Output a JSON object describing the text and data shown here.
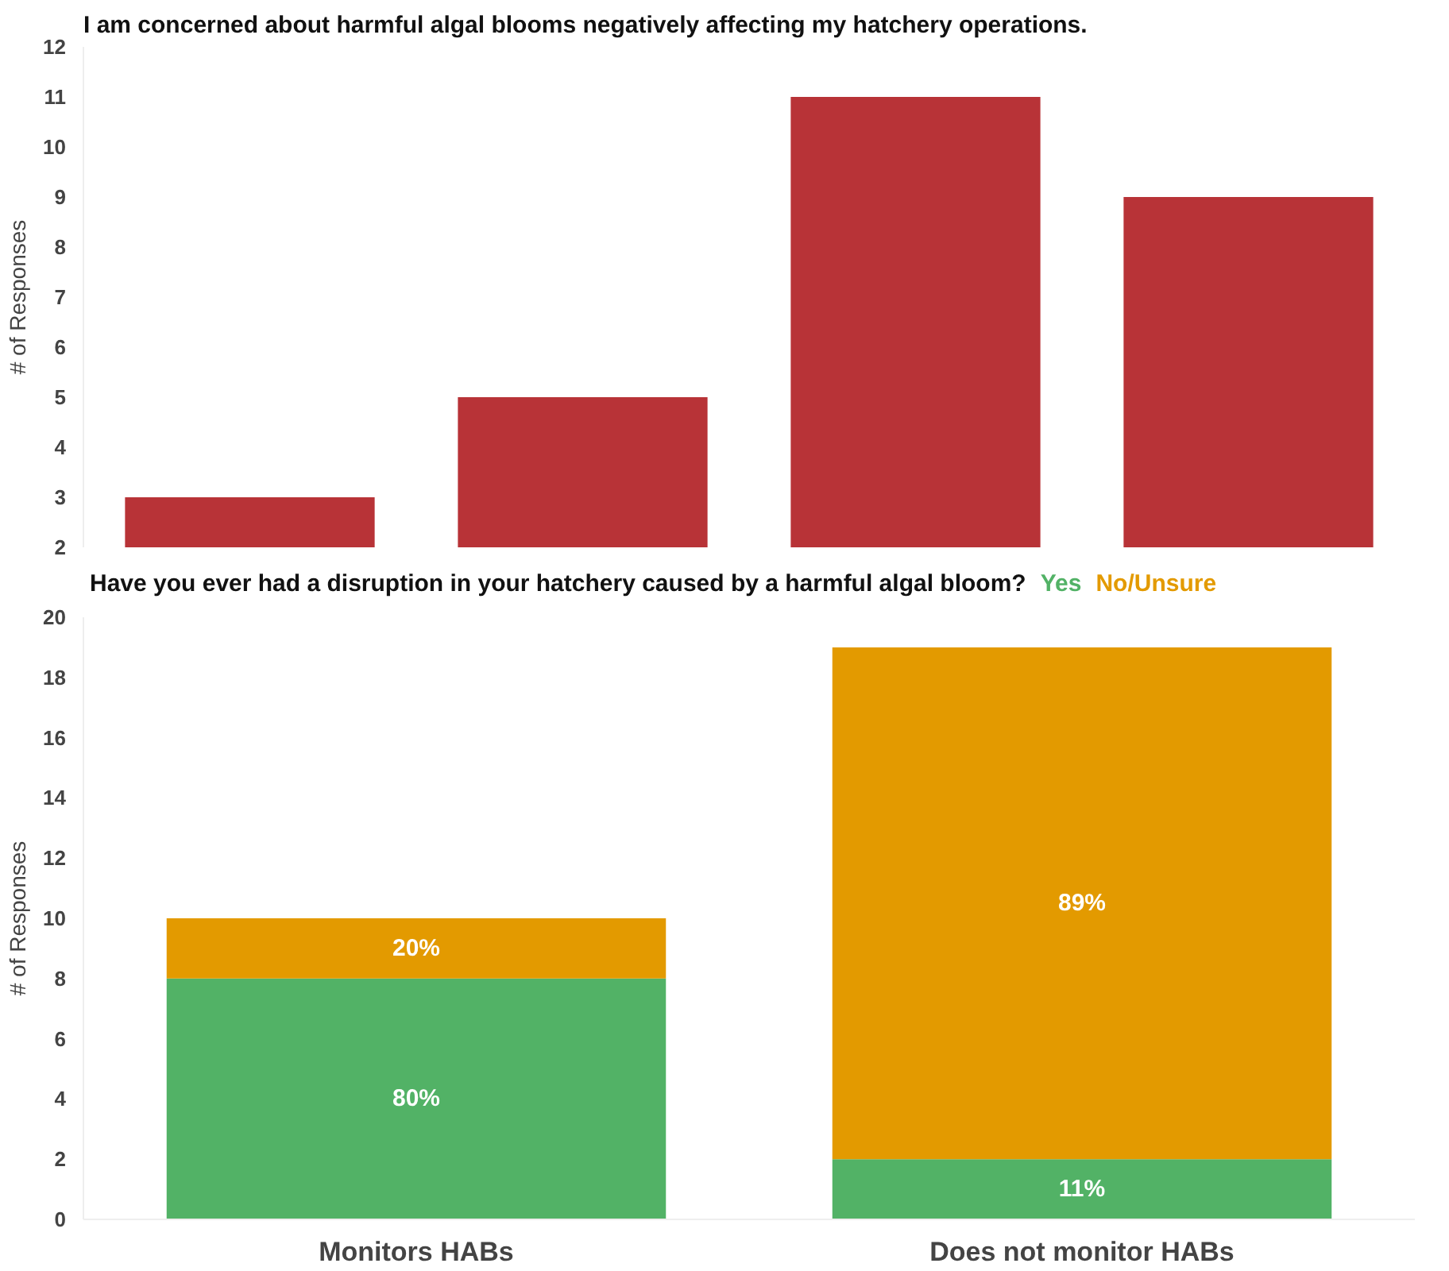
{
  "chart_data": [
    {
      "type": "bar",
      "title": "I am concerned about harmful algal blooms negatively affecting my hatchery operations.",
      "ylabel": "# of Responses",
      "categories": [
        null,
        null,
        null,
        null
      ],
      "values": [
        3,
        5,
        11,
        9
      ],
      "color": "#b83337",
      "ylim": [
        2,
        12
      ],
      "yticks": [
        2,
        3,
        4,
        5,
        6,
        7,
        8,
        9,
        10,
        11,
        12
      ],
      "tick_labels": "y",
      "grid": false
    },
    {
      "type": "bar",
      "title": "Have you ever had a disruption in your hatchery caused by a harmful algal bloom?",
      "ylabel": "# of Responses",
      "categories": [
        "Monitors HABs",
        "Does not monitor HABs"
      ],
      "stacked": true,
      "series": [
        {
          "name": "Yes",
          "color": "#52b266",
          "values": [
            8,
            2
          ]
        },
        {
          "name": "No/Unsure",
          "color": "#e39a00",
          "values": [
            2,
            17
          ]
        }
      ],
      "annotations": [
        "80%",
        "11%",
        "20%",
        "89%"
      ],
      "ylim": [
        0,
        20
      ],
      "yticks": [
        0,
        2,
        4,
        6,
        8,
        10,
        12,
        14,
        16,
        18,
        20
      ],
      "grid": false
    }
  ]
}
